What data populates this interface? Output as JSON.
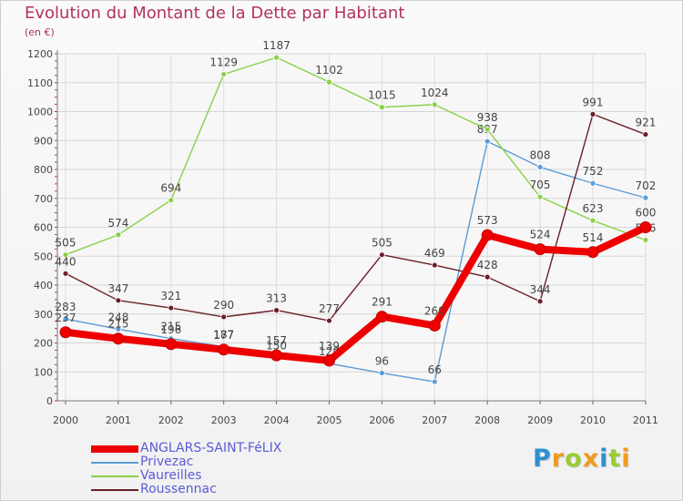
{
  "header": {
    "title": "Evolution du Montant de la Dette par Habitant",
    "subtitle": "(en €)"
  },
  "chart_data": {
    "type": "line",
    "title": "Evolution du Montant de la Dette par Habitant",
    "ylabel": "(en €)",
    "xlabel": "",
    "ylim": [
      0,
      1200
    ],
    "yticks": [
      0,
      100,
      200,
      300,
      400,
      500,
      600,
      700,
      800,
      900,
      1000,
      1100,
      1200
    ],
    "categories": [
      "2000",
      "2001",
      "2002",
      "2003",
      "2004",
      "2005",
      "2006",
      "2007",
      "2008",
      "2009",
      "2010",
      "2011"
    ],
    "grid": true,
    "legend_position": "bottom-left",
    "series": [
      {
        "name": "ANGLARS-SAINT-FéLIX",
        "color": "#ee0000",
        "style": "thick",
        "values": [
          237,
          215,
          196,
          177,
          157,
          139,
          291,
          260,
          573,
          524,
          514,
          600
        ]
      },
      {
        "name": "Privezac",
        "color": "#5b9bd5",
        "style": "thin",
        "values": [
          283,
          248,
          215,
          187,
          150,
          129,
          96,
          66,
          897,
          808,
          752,
          702
        ]
      },
      {
        "name": "Vaureilles",
        "color": "#8ad046",
        "style": "thin",
        "values": [
          505,
          574,
          694,
          1129,
          1187,
          1102,
          1015,
          1024,
          938,
          705,
          623,
          556
        ]
      },
      {
        "name": "Roussennac",
        "color": "#6b1f27",
        "style": "thin",
        "values": [
          440,
          347,
          321,
          290,
          313,
          277,
          505,
          469,
          428,
          344,
          991,
          921
        ]
      }
    ]
  },
  "logo": {
    "letters": [
      "P",
      "r",
      "o",
      "x",
      "i",
      "t",
      "i"
    ],
    "colors": [
      "#2f8fd0",
      "#f39a1e",
      "#9acd32",
      "#f39a1e",
      "#2f8fd0",
      "#9acd32",
      "#f39a1e"
    ]
  }
}
